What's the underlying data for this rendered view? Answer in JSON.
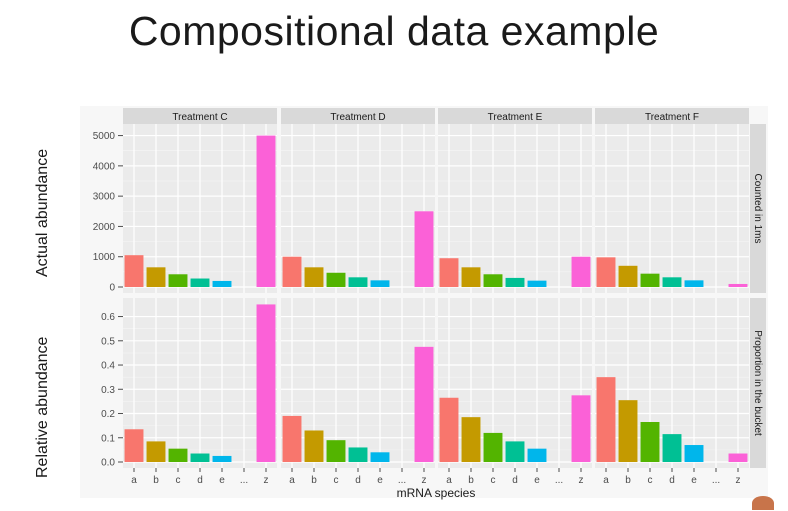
{
  "slide": {
    "title": "Compositional data example",
    "row_labels": [
      "Actual abundance",
      "Relative abundance"
    ]
  },
  "chart_data": {
    "type": "bar",
    "title": "Compositional data example",
    "xlabel": "mRNA species",
    "categories": [
      "a",
      "b",
      "c",
      "d",
      "e",
      "...",
      "z"
    ],
    "facet_columns": [
      "Treatment C",
      "Treatment D",
      "Treatment E",
      "Treatment F"
    ],
    "facet_rows": [
      {
        "name": "Counted in 1ms",
        "ylabel": "Actual abundance",
        "ylim": [
          0,
          5250
        ],
        "yticks": [
          0,
          1000,
          2000,
          3000,
          4000,
          5000
        ],
        "series": [
          {
            "name": "Treatment C",
            "values": [
              1050,
              650,
              420,
              280,
              200,
              null,
              5000
            ]
          },
          {
            "name": "Treatment D",
            "values": [
              1000,
              650,
              470,
              320,
              220,
              null,
              2500
            ]
          },
          {
            "name": "Treatment E",
            "values": [
              950,
              650,
              420,
              300,
              210,
              null,
              1000
            ]
          },
          {
            "name": "Treatment F",
            "values": [
              980,
              700,
              440,
              320,
              220,
              null,
              100
            ]
          }
        ]
      },
      {
        "name": "Proportion in the bucket",
        "ylabel": "Relative abundance",
        "ylim": [
          0,
          0.66
        ],
        "yticks": [
          0.0,
          0.1,
          0.2,
          0.3,
          0.4,
          0.5,
          0.6
        ],
        "ytick_labels": [
          "0.0",
          "0.1",
          "0.2",
          "0.3",
          "0.4",
          "0.5",
          "0.6"
        ],
        "series": [
          {
            "name": "Treatment C",
            "values": [
              0.135,
              0.085,
              0.055,
              0.035,
              0.025,
              null,
              0.65
            ]
          },
          {
            "name": "Treatment D",
            "values": [
              0.19,
              0.13,
              0.09,
              0.06,
              0.04,
              null,
              0.475
            ]
          },
          {
            "name": "Treatment E",
            "values": [
              0.265,
              0.185,
              0.12,
              0.085,
              0.055,
              null,
              0.275
            ]
          },
          {
            "name": "Treatment F",
            "values": [
              0.35,
              0.255,
              0.165,
              0.115,
              0.07,
              null,
              0.035
            ]
          }
        ]
      }
    ],
    "category_colors": [
      "#f8766d",
      "#c49a00",
      "#53b400",
      "#00c094",
      "#00b6eb",
      "#a58aff",
      "#fb61d7"
    ],
    "panel_background": "#ebebeb",
    "strip_background": "#d9d9d9",
    "grid": true
  }
}
